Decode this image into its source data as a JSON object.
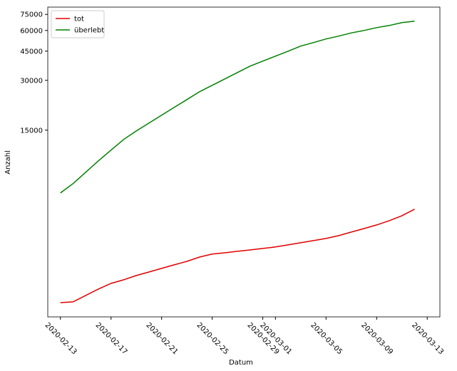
{
  "chart_data": {
    "type": "line",
    "xlabel": "Datum",
    "ylabel": "Anzahl",
    "yscale": "log",
    "x": [
      "2020-02-13",
      "2020-02-14",
      "2020-02-15",
      "2020-02-16",
      "2020-02-17",
      "2020-02-18",
      "2020-02-19",
      "2020-02-20",
      "2020-02-21",
      "2020-02-22",
      "2020-02-23",
      "2020-02-24",
      "2020-02-25",
      "2020-02-26",
      "2020-02-27",
      "2020-02-28",
      "2020-02-29",
      "2020-03-01",
      "2020-03-02",
      "2020-03-03",
      "2020-03-04",
      "2020-03-05",
      "2020-03-06",
      "2020-03-07",
      "2020-03-08",
      "2020-03-09",
      "2020-03-10",
      "2020-03-11",
      "2020-03-12"
    ],
    "series": [
      {
        "name": "tot",
        "color": "#e00000",
        "values": [
          1365,
          1380,
          1508,
          1649,
          1784,
          1875,
          1990,
          2090,
          2198,
          2310,
          2425,
          2573,
          2680,
          2730,
          2786,
          2841,
          2900,
          2960,
          3045,
          3137,
          3233,
          3330,
          3464,
          3640,
          3822,
          4020,
          4266,
          4572,
          5000
        ]
      },
      {
        "name": "überlebt",
        "color": "#008000",
        "values": [
          6270,
          7140,
          8360,
          9800,
          11370,
          13190,
          14850,
          16560,
          18470,
          20600,
          22960,
          25610,
          27990,
          30600,
          33450,
          36570,
          39200,
          42000,
          45000,
          48300,
          50700,
          53300,
          55500,
          58000,
          60000,
          62400,
          64300,
          66900,
          68200
        ]
      }
    ],
    "xlim": [
      "2020-02-12",
      "2020-03-14"
    ],
    "xticks": [
      "2020-02-13",
      "2020-02-17",
      "2020-02-21",
      "2020-02-25",
      "2020-02-29",
      "2020-03-01",
      "2020-03-05",
      "2020-03-09",
      "2020-03-13"
    ],
    "ylim": [
      1120,
      83000
    ],
    "yticks": [
      15000,
      30000,
      45000,
      60000,
      75000
    ],
    "legend": "upper left"
  }
}
